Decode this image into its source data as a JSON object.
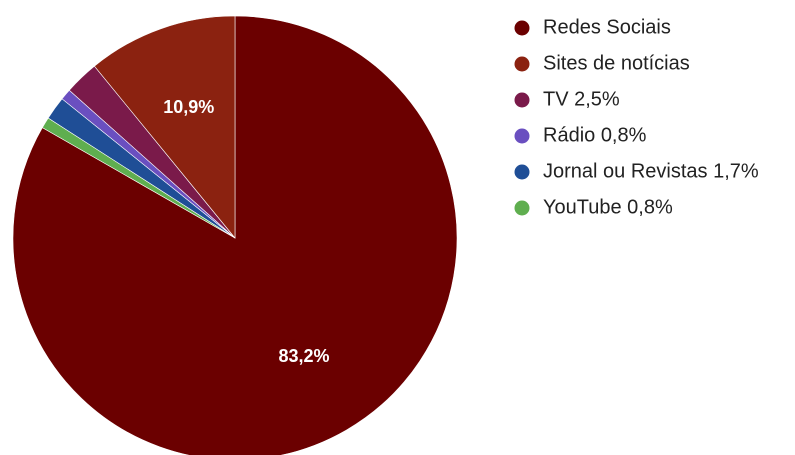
{
  "chart_data": {
    "type": "pie",
    "title": "",
    "legend_position": "right",
    "series": [
      {
        "name": "Redes Sociais",
        "legend_label": "Redes Sociais",
        "value": 83.2,
        "value_label": "83,2%",
        "show_label": true,
        "color": "#6b0000"
      },
      {
        "name": "Sites de notícias",
        "legend_label": "Sites de notícias",
        "value": 10.9,
        "value_label": "10,9%",
        "show_label": true,
        "color": "#8b2210"
      },
      {
        "name": "TV",
        "legend_label": "TV 2,5%",
        "value": 2.5,
        "value_label": "2,5%",
        "show_label": false,
        "color": "#7a1a4a"
      },
      {
        "name": "Rádio",
        "legend_label": "Rádio 0,8%",
        "value": 0.8,
        "value_label": "0,8%",
        "show_label": false,
        "color": "#6a4fc0"
      },
      {
        "name": "Jornal ou Revistas",
        "legend_label": "Jornal ou Revistas 1,7%",
        "value": 1.7,
        "value_label": "1,7%",
        "show_label": false,
        "color": "#1f4e96"
      },
      {
        "name": "YouTube",
        "legend_label": "YouTube 0,8%",
        "value": 0.8,
        "value_label": "0,8%",
        "show_label": false,
        "color": "#5fae4f"
      }
    ]
  }
}
